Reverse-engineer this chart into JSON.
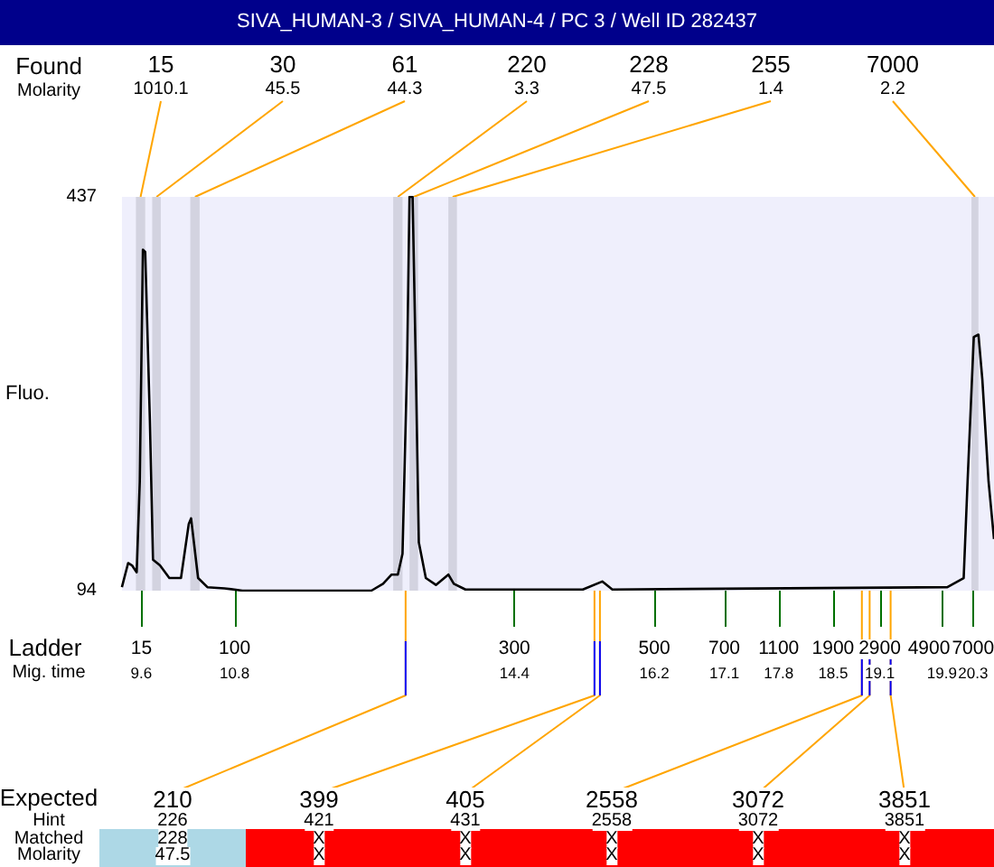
{
  "chart_data": {
    "type": "line",
    "title": "SIVA_HUMAN-3 / SIVA_HUMAN-4 / PC 3 / Well ID 282437",
    "ylabel": "Fluo.",
    "xlabel": "Mig. time",
    "x2label": "Ladder",
    "xlim": [
      9.35,
      20.57
    ],
    "xticks": [
      9.6,
      10.8,
      14.4,
      16.2,
      17.1,
      17.8,
      18.5,
      19.1,
      19.9,
      20.3
    ],
    "ylim": [
      94,
      437
    ],
    "yticks": [
      94,
      437
    ],
    "grid": false,
    "marker": "none",
    "line_style": "solid",
    "series": [
      {
        "color": "#000000",
        "x": [
          9.35,
          9.43,
          9.48,
          9.54,
          9.58,
          9.62,
          9.65,
          9.71,
          9.75,
          9.84,
          9.96,
          10.11,
          10.21,
          10.24,
          10.33,
          10.45,
          10.67,
          10.9,
          12.56,
          12.71,
          12.82,
          12.9,
          12.96,
          13.02,
          13.05,
          13.09,
          13.13,
          13.17,
          13.26,
          13.39,
          13.55,
          13.62,
          13.77,
          15.28,
          15.53,
          15.66,
          19.97,
          20.18,
          20.23,
          20.31,
          20.37,
          20.42,
          20.5,
          20.57
        ],
        "values": [
          97,
          118,
          116,
          110,
          189,
          391,
          389,
          242,
          121,
          116,
          105,
          105,
          152,
          157,
          105,
          97,
          96,
          94,
          94,
          100,
          108,
          108,
          126,
          294,
          437,
          437,
          294,
          136,
          105,
          99,
          108,
          100,
          95,
          95,
          102,
          95,
          97,
          105,
          189,
          315,
          317,
          278,
          189,
          139
        ]
      }
    ],
    "bands": [
      {
        "axis": "x",
        "from": 9.53,
        "to": 9.65,
        "label": "15\n1010.1",
        "color": "#d3d3e0"
      },
      {
        "axis": "x",
        "from": 9.74,
        "to": 9.85,
        "label": "30\n45.5",
        "color": "#d3d3e0"
      },
      {
        "axis": "x",
        "from": 10.23,
        "to": 10.35,
        "label": "61\n44.3",
        "color": "#d3d3e0"
      },
      {
        "axis": "x",
        "from": 12.84,
        "to": 12.96,
        "label": "220\n3.3",
        "color": "#d3d3e0"
      },
      {
        "axis": "x",
        "from": 13.05,
        "to": 13.16,
        "label": "228\n47.5",
        "color": "#d3d3e0"
      },
      {
        "axis": "x",
        "from": 13.55,
        "to": 13.66,
        "label": "255\n1.4",
        "color": "#d3d3e0"
      },
      {
        "axis": "x",
        "from": 20.28,
        "to": 20.37,
        "label": "7000\n2.2",
        "color": "#d3d3e0"
      }
    ],
    "annotations": [
      "Found",
      "Molarity",
      "Expected",
      "Hint",
      "Matched",
      "Molarity",
      {
        "text": "15",
        "x": 9.6,
        "y": 94
      },
      {
        "text": "100",
        "x": 10.8,
        "y": 94
      },
      {
        "text": "300",
        "x": 14.4,
        "y": 94
      },
      {
        "text": "500",
        "x": 16.2,
        "y": 94
      },
      {
        "text": "700",
        "x": 17.1,
        "y": 94
      },
      {
        "text": "1100",
        "x": 17.8,
        "y": 94
      },
      {
        "text": "1900",
        "x": 18.5,
        "y": 94
      },
      {
        "text": "2900",
        "x": 19.1,
        "y": 94
      },
      {
        "text": "4900",
        "x": 19.9,
        "y": 94
      },
      {
        "text": "7000",
        "x": 20.3,
        "y": 94
      },
      {
        "text": "210",
        "x": 13.0,
        "y": 94
      },
      "226",
      "228",
      "47.5",
      {
        "text": "399",
        "x": 15.43,
        "y": 94
      },
      "421",
      "X",
      "X",
      {
        "text": "405",
        "x": 15.5,
        "y": 94
      },
      "431",
      "X",
      "X",
      {
        "text": "2558",
        "x": 18.87,
        "y": 94
      },
      "2558",
      "X",
      "X",
      {
        "text": "3072",
        "x": 18.97,
        "y": 94
      },
      "3072",
      "X",
      "X",
      {
        "text": "3851",
        "x": 19.24,
        "y": 94
      },
      "3851",
      "X",
      "X"
    ]
  }
}
